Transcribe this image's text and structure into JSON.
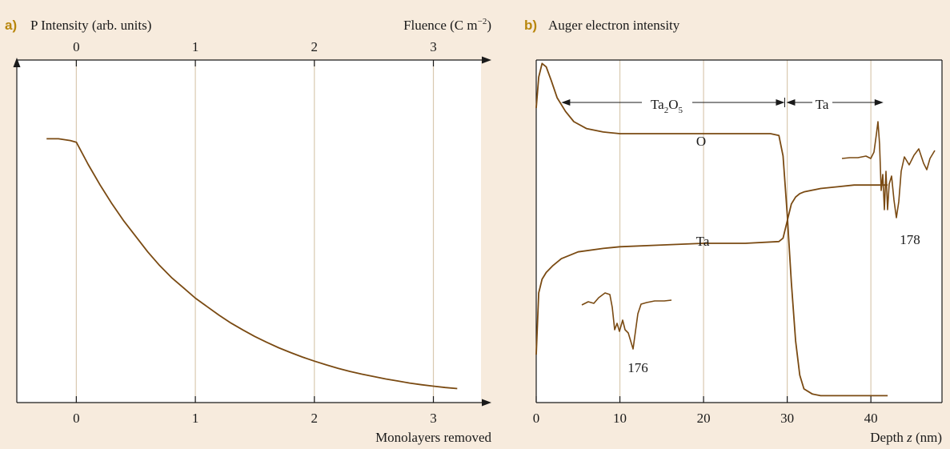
{
  "colors": {
    "trace": "#7a4a12",
    "grid": "#d9c9b0",
    "background": "#f7ebdd"
  },
  "chart_data": [
    {
      "type": "line",
      "panel_label": "a)",
      "ylabel": "P Intensity (arb. units)",
      "xlabel": "Monolayers removed",
      "top_axis_label_main": "Fluence (C m",
      "top_axis_label_sup": "−2",
      "top_axis_label_close": ")",
      "xlim": [
        -0.5,
        3.4
      ],
      "ylim": [
        0,
        1.0
      ],
      "xticks": [
        0,
        1,
        2,
        3
      ],
      "xtick_labels": [
        "0",
        "1",
        "2",
        "3"
      ],
      "top_xticks": [
        0,
        1,
        2,
        3
      ],
      "top_xtick_labels": [
        "0",
        "1",
        "2",
        "3"
      ],
      "grid": "vertical",
      "series": [
        {
          "x": [
            -0.25,
            -0.15,
            -0.05,
            0.0,
            0.1,
            0.2,
            0.3,
            0.4,
            0.5,
            0.6,
            0.7,
            0.8,
            0.9,
            1.0,
            1.1,
            1.2,
            1.3,
            1.4,
            1.5,
            1.6,
            1.7,
            1.8,
            1.9,
            2.0,
            2.1,
            2.2,
            2.3,
            2.4,
            2.5,
            2.6,
            2.7,
            2.8,
            2.9,
            3.0,
            3.1,
            3.2
          ],
          "y": [
            0.77,
            0.77,
            0.765,
            0.76,
            0.695,
            0.635,
            0.58,
            0.53,
            0.485,
            0.44,
            0.4,
            0.365,
            0.335,
            0.305,
            0.28,
            0.255,
            0.232,
            0.212,
            0.193,
            0.176,
            0.16,
            0.146,
            0.133,
            0.121,
            0.11,
            0.1,
            0.091,
            0.083,
            0.076,
            0.069,
            0.063,
            0.057,
            0.052,
            0.048,
            0.044,
            0.041
          ]
        }
      ]
    },
    {
      "type": "line",
      "panel_label": "b)",
      "ylabel": "Auger electron intensity",
      "xlabel_pre": "Depth ",
      "xlabel_var": "z",
      "xlabel_post": " (nm)",
      "xlim": [
        0,
        48.5
      ],
      "ylim": [
        0,
        1.0
      ],
      "xticks": [
        0,
        10,
        20,
        30,
        40
      ],
      "xtick_labels": [
        "0",
        "10",
        "20",
        "30",
        "40"
      ],
      "grid": "vertical",
      "annotations": {
        "region_oxide_main": "Ta",
        "region_oxide_sub1": "2",
        "region_oxide_mid": "O",
        "region_oxide_sub2": "5",
        "region_oxide_range": [
          3,
          29.7
        ],
        "region_metal": "Ta",
        "region_metal_range": [
          29.7,
          41.5
        ],
        "curve_label_O": "O",
        "curve_label_Ta": "Ta",
        "peak_label_176": "176",
        "peak_label_178": "178"
      },
      "series": [
        {
          "name": "O",
          "x": [
            0,
            0.3,
            0.7,
            1.2,
            1.8,
            2.5,
            3.5,
            4.5,
            6,
            8,
            10,
            14,
            18,
            22,
            26,
            28,
            29,
            29.5,
            30,
            30.5,
            31,
            31.5,
            32,
            33,
            34,
            36,
            38,
            40,
            42
          ],
          "y": [
            0.86,
            0.95,
            0.99,
            0.98,
            0.94,
            0.89,
            0.85,
            0.82,
            0.8,
            0.79,
            0.785,
            0.785,
            0.785,
            0.785,
            0.785,
            0.785,
            0.78,
            0.72,
            0.55,
            0.35,
            0.18,
            0.08,
            0.04,
            0.025,
            0.02,
            0.02,
            0.02,
            0.02,
            0.02
          ]
        },
        {
          "name": "Ta",
          "x": [
            0,
            0.3,
            0.7,
            1.2,
            2,
            3,
            5,
            8,
            10,
            15,
            20,
            25,
            29,
            29.5,
            30,
            30.5,
            31,
            31.5,
            32,
            34,
            36,
            38,
            40,
            42
          ],
          "y": [
            0.14,
            0.32,
            0.36,
            0.38,
            0.4,
            0.42,
            0.44,
            0.45,
            0.455,
            0.46,
            0.465,
            0.465,
            0.47,
            0.48,
            0.53,
            0.58,
            0.6,
            0.61,
            0.615,
            0.625,
            0.63,
            0.635,
            0.635,
            0.635
          ]
        }
      ]
    }
  ]
}
